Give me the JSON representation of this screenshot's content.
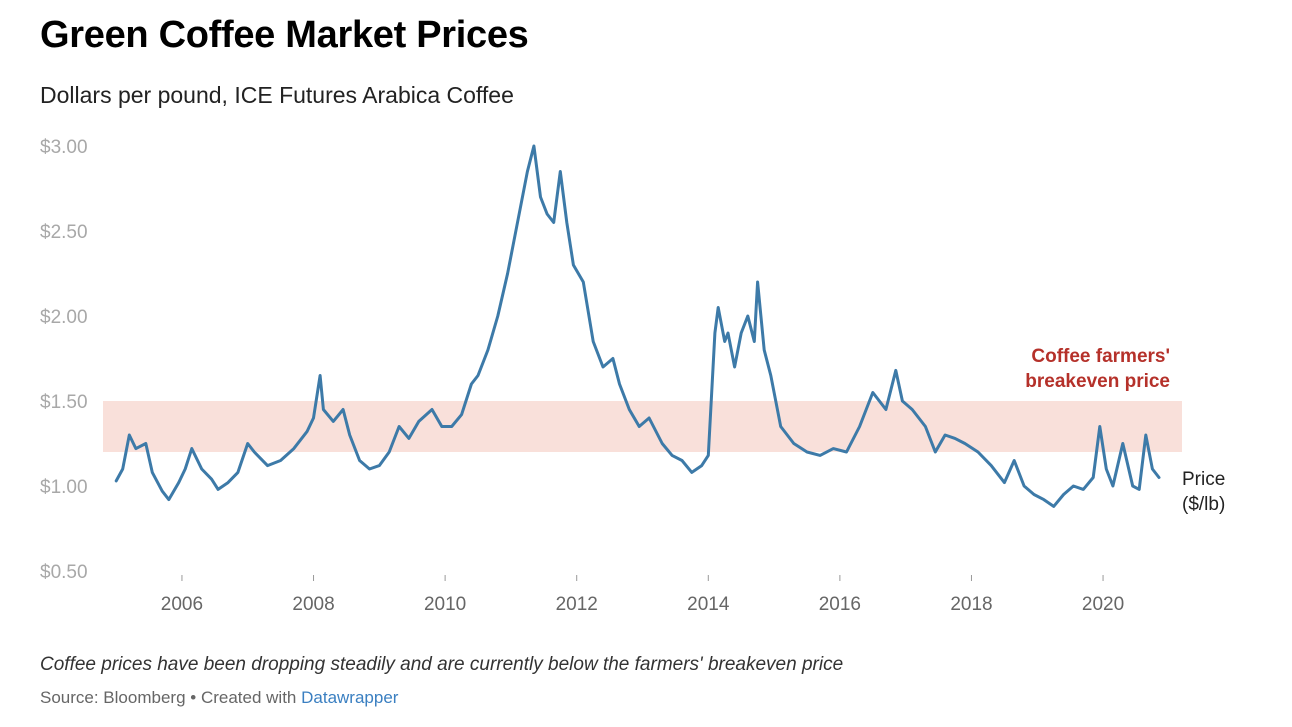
{
  "title": "Green Coffee Market Prices",
  "subtitle": "Dollars per pound, ICE Futures Arabica Coffee",
  "notes": "Coffee prices have been dropping steadily and are currently below the farmers' breakeven price",
  "source": {
    "prefix": "Source: Bloomberg",
    "separator": "•",
    "created_with": "Created with",
    "link_text": "Datawrapper"
  },
  "chart_data": {
    "type": "line",
    "title": "",
    "xlabel": "",
    "ylabel": "",
    "xlim": [
      2004.8,
      2021.2
    ],
    "ylim": [
      0.5,
      3.1
    ],
    "y_ticks": [
      0.5,
      1.0,
      1.5,
      2.0,
      2.5,
      3.0
    ],
    "y_tick_labels": [
      "$0.50",
      "$1.00",
      "$1.50",
      "$2.00",
      "$2.50",
      "$3.00"
    ],
    "x_ticks": [
      2006,
      2008,
      2010,
      2012,
      2014,
      2016,
      2018,
      2020
    ],
    "x_tick_labels": [
      "2006",
      "2008",
      "2010",
      "2012",
      "2014",
      "2016",
      "2018",
      "2020"
    ],
    "grid": false,
    "breakeven_band": {
      "label_lines": [
        "Coffee farmers'",
        "breakeven price"
      ],
      "low": 1.2,
      "high": 1.5,
      "color": "#f9e0da",
      "label_color": "#b5312a"
    },
    "series": [
      {
        "name": "Price ($/lb)",
        "name_lines": [
          "Price",
          "($/lb)"
        ],
        "color": "#3d7aa8",
        "x": [
          2005.0,
          2005.1,
          2005.2,
          2005.3,
          2005.45,
          2005.55,
          2005.7,
          2005.8,
          2005.95,
          2006.05,
          2006.15,
          2006.3,
          2006.45,
          2006.55,
          2006.7,
          2006.85,
          2007.0,
          2007.1,
          2007.3,
          2007.5,
          2007.7,
          2007.9,
          2008.0,
          2008.1,
          2008.15,
          2008.3,
          2008.45,
          2008.55,
          2008.7,
          2008.85,
          2009.0,
          2009.15,
          2009.3,
          2009.45,
          2009.6,
          2009.8,
          2009.95,
          2010.1,
          2010.25,
          2010.4,
          2010.5,
          2010.65,
          2010.8,
          2010.95,
          2011.05,
          2011.15,
          2011.25,
          2011.35,
          2011.45,
          2011.55,
          2011.65,
          2011.75,
          2011.85,
          2011.95,
          2012.1,
          2012.25,
          2012.4,
          2012.55,
          2012.65,
          2012.8,
          2012.95,
          2013.1,
          2013.3,
          2013.45,
          2013.6,
          2013.75,
          2013.9,
          2014.0,
          2014.1,
          2014.15,
          2014.25,
          2014.3,
          2014.4,
          2014.5,
          2014.6,
          2014.7,
          2014.75,
          2014.85,
          2014.95,
          2015.1,
          2015.3,
          2015.5,
          2015.7,
          2015.9,
          2016.1,
          2016.3,
          2016.5,
          2016.7,
          2016.85,
          2016.95,
          2017.1,
          2017.3,
          2017.45,
          2017.6,
          2017.75,
          2017.9,
          2018.1,
          2018.3,
          2018.5,
          2018.65,
          2018.8,
          2018.95,
          2019.1,
          2019.25,
          2019.4,
          2019.55,
          2019.7,
          2019.85,
          2019.95,
          2020.05,
          2020.15,
          2020.3,
          2020.45,
          2020.55,
          2020.65,
          2020.75,
          2020.85
        ],
        "values": [
          1.03,
          1.1,
          1.3,
          1.22,
          1.25,
          1.08,
          0.97,
          0.92,
          1.02,
          1.1,
          1.22,
          1.1,
          1.04,
          0.98,
          1.02,
          1.08,
          1.25,
          1.2,
          1.12,
          1.15,
          1.22,
          1.32,
          1.4,
          1.65,
          1.45,
          1.38,
          1.45,
          1.3,
          1.15,
          1.1,
          1.12,
          1.2,
          1.35,
          1.28,
          1.38,
          1.45,
          1.35,
          1.35,
          1.42,
          1.6,
          1.65,
          1.8,
          2.0,
          2.25,
          2.45,
          2.65,
          2.85,
          3.0,
          2.7,
          2.6,
          2.55,
          2.85,
          2.55,
          2.3,
          2.2,
          1.85,
          1.7,
          1.75,
          1.6,
          1.45,
          1.35,
          1.4,
          1.25,
          1.18,
          1.15,
          1.08,
          1.12,
          1.18,
          1.9,
          2.05,
          1.85,
          1.9,
          1.7,
          1.9,
          2.0,
          1.85,
          2.2,
          1.8,
          1.65,
          1.35,
          1.25,
          1.2,
          1.18,
          1.22,
          1.2,
          1.35,
          1.55,
          1.45,
          1.68,
          1.5,
          1.45,
          1.35,
          1.2,
          1.3,
          1.28,
          1.25,
          1.2,
          1.12,
          1.02,
          1.15,
          1.0,
          0.95,
          0.92,
          0.88,
          0.95,
          1.0,
          0.98,
          1.05,
          1.35,
          1.1,
          1.0,
          1.25,
          1.0,
          0.98,
          1.3,
          1.1,
          1.05
        ]
      }
    ]
  }
}
